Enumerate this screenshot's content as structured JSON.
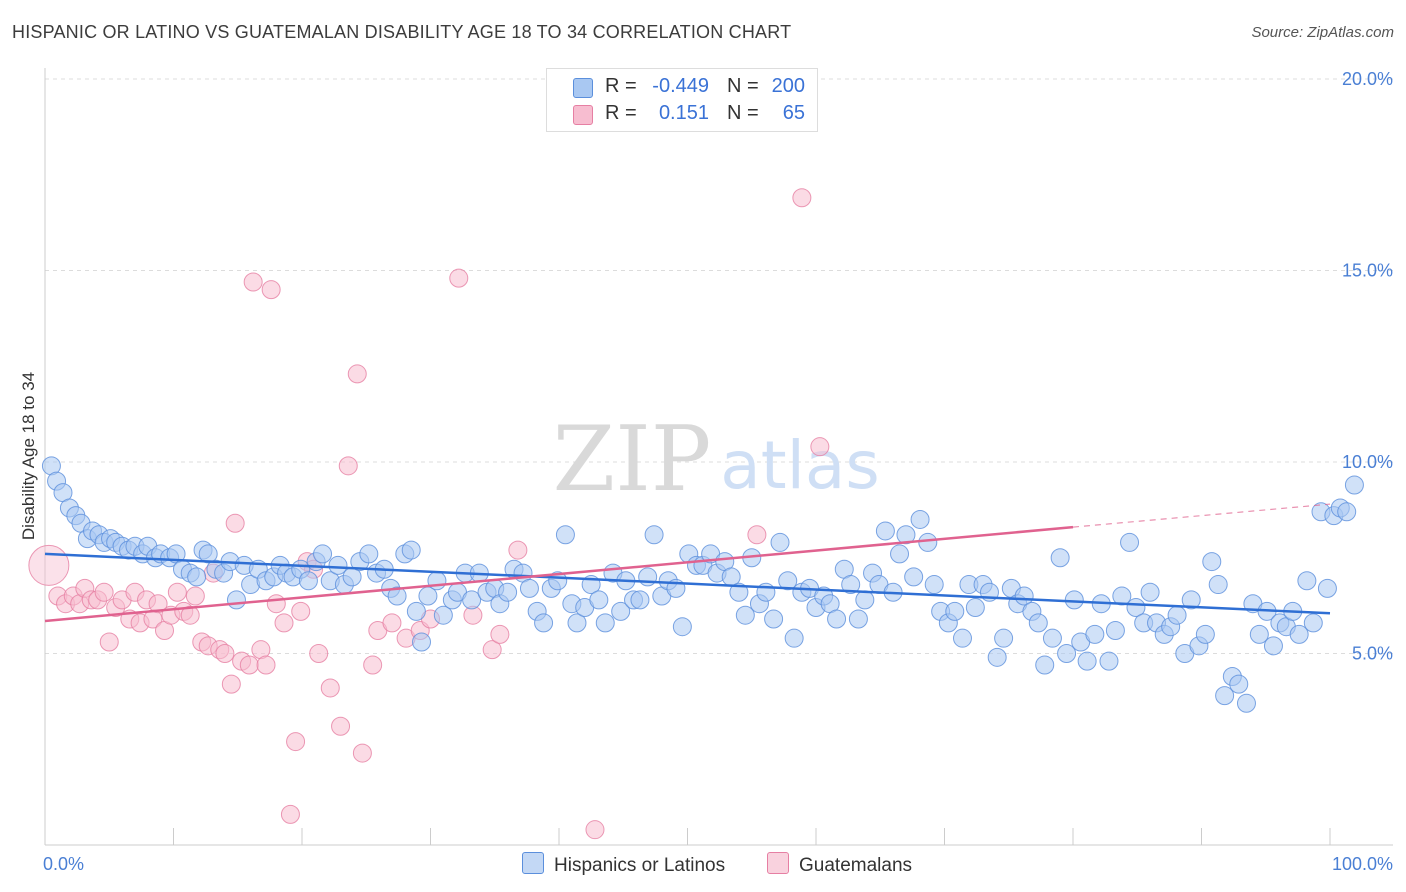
{
  "header": {
    "title": "HISPANIC OR LATINO VS GUATEMALAN DISABILITY AGE 18 TO 34 CORRELATION CHART",
    "source": "Source: ZipAtlas.com"
  },
  "watermark": {
    "zip": "ZIP",
    "atlas": "atlas"
  },
  "legend": {
    "rows": [
      {
        "r_label": "R =",
        "r_value": "-0.449",
        "n_label": "N =",
        "n_value": "200",
        "color": "#a9c8f2"
      },
      {
        "r_label": "R =",
        "r_value": "0.151",
        "n_label": "N =",
        "n_value": "65",
        "color": "#f7bdd0"
      }
    ]
  },
  "bottom_legend": {
    "items": [
      {
        "label": "Hispanics or Latinos",
        "color": "#a9c8f2"
      },
      {
        "label": "Guatemalans",
        "color": "#f7bdd0"
      }
    ]
  },
  "colors": {
    "blue_fill": "#a9c8f2",
    "blue_stroke": "#5b8fdc",
    "blue_line": "#2f6fd4",
    "pink_fill": "#f7bdd0",
    "pink_stroke": "#e67fa3",
    "pink_line": "#e0628f",
    "tick_label": "#4a7fd4",
    "grid": "#dcdcdc"
  },
  "chart_data": {
    "type": "scatter",
    "title": "HISPANIC OR LATINO VS GUATEMALAN DISABILITY AGE 18 TO 34 CORRELATION CHART",
    "xlabel": "",
    "ylabel": "Disability Age 18 to 34",
    "xlim": [
      0,
      100
    ],
    "ylim": [
      0,
      21
    ],
    "x_tick_labels": [
      "0.0%",
      "100.0%"
    ],
    "y_ticks": [
      5,
      10,
      15,
      20
    ],
    "y_tick_labels": [
      "5.0%",
      "10.0%",
      "15.0%",
      "20.0%"
    ],
    "grid": true,
    "legend_position": "top-center",
    "series": [
      {
        "name": "Hispanics or Latinos",
        "r": -0.449,
        "n": 200,
        "trend": {
          "x": [
            0,
            100
          ],
          "y": [
            7.6,
            6.05
          ]
        },
        "points": [
          [
            0.5,
            9.9
          ],
          [
            0.9,
            9.5
          ],
          [
            1.4,
            9.2
          ],
          [
            1.9,
            8.8
          ],
          [
            2.4,
            8.6
          ],
          [
            2.8,
            8.4
          ],
          [
            3.3,
            8.0
          ],
          [
            3.7,
            8.2
          ],
          [
            4.2,
            8.1
          ],
          [
            4.6,
            7.9
          ],
          [
            5.1,
            8.0
          ],
          [
            5.5,
            7.9
          ],
          [
            6.0,
            7.8
          ],
          [
            6.5,
            7.7
          ],
          [
            7.0,
            7.8
          ],
          [
            7.6,
            7.6
          ],
          [
            8.0,
            7.8
          ],
          [
            8.6,
            7.5
          ],
          [
            9.0,
            7.6
          ],
          [
            9.7,
            7.5
          ],
          [
            10.2,
            7.6
          ],
          [
            10.7,
            7.2
          ],
          [
            11.3,
            7.1
          ],
          [
            11.8,
            7.0
          ],
          [
            12.3,
            7.7
          ],
          [
            12.7,
            7.6
          ],
          [
            13.3,
            7.2
          ],
          [
            13.9,
            7.1
          ],
          [
            14.4,
            7.4
          ],
          [
            14.9,
            6.4
          ],
          [
            15.5,
            7.3
          ],
          [
            16.0,
            6.8
          ],
          [
            16.6,
            7.2
          ],
          [
            17.2,
            6.9
          ],
          [
            17.8,
            7.0
          ],
          [
            18.3,
            7.3
          ],
          [
            18.8,
            7.1
          ],
          [
            19.3,
            7.0
          ],
          [
            19.9,
            7.2
          ],
          [
            20.5,
            6.9
          ],
          [
            21.1,
            7.4
          ],
          [
            21.6,
            7.6
          ],
          [
            22.2,
            6.9
          ],
          [
            22.8,
            7.3
          ],
          [
            23.3,
            6.8
          ],
          [
            23.9,
            7.0
          ],
          [
            24.5,
            7.4
          ],
          [
            25.2,
            7.6
          ],
          [
            25.8,
            7.1
          ],
          [
            26.4,
            7.2
          ],
          [
            26.9,
            6.7
          ],
          [
            27.4,
            6.5
          ],
          [
            28.0,
            7.6
          ],
          [
            28.5,
            7.7
          ],
          [
            28.9,
            6.1
          ],
          [
            29.3,
            5.3
          ],
          [
            29.8,
            6.5
          ],
          [
            30.5,
            6.9
          ],
          [
            31.0,
            6.0
          ],
          [
            31.7,
            6.4
          ],
          [
            32.1,
            6.6
          ],
          [
            32.7,
            7.1
          ],
          [
            33.2,
            6.4
          ],
          [
            33.8,
            7.1
          ],
          [
            34.4,
            6.6
          ],
          [
            35.0,
            6.7
          ],
          [
            35.4,
            6.3
          ],
          [
            36.0,
            6.6
          ],
          [
            36.5,
            7.2
          ],
          [
            37.2,
            7.1
          ],
          [
            37.7,
            6.7
          ],
          [
            38.3,
            6.1
          ],
          [
            38.8,
            5.8
          ],
          [
            39.4,
            6.7
          ],
          [
            39.9,
            6.9
          ],
          [
            40.5,
            8.1
          ],
          [
            41.0,
            6.3
          ],
          [
            41.4,
            5.8
          ],
          [
            42.0,
            6.2
          ],
          [
            42.5,
            6.8
          ],
          [
            43.1,
            6.4
          ],
          [
            43.6,
            5.8
          ],
          [
            44.2,
            7.1
          ],
          [
            44.8,
            6.1
          ],
          [
            45.2,
            6.9
          ],
          [
            45.8,
            6.4
          ],
          [
            46.3,
            6.4
          ],
          [
            46.9,
            7.0
          ],
          [
            47.4,
            8.1
          ],
          [
            48.0,
            6.5
          ],
          [
            48.5,
            6.9
          ],
          [
            49.1,
            6.7
          ],
          [
            49.6,
            5.7
          ],
          [
            50.1,
            7.6
          ],
          [
            50.7,
            7.3
          ],
          [
            51.2,
            7.3
          ],
          [
            51.8,
            7.6
          ],
          [
            52.3,
            7.1
          ],
          [
            52.9,
            7.4
          ],
          [
            53.4,
            7.0
          ],
          [
            54.0,
            6.6
          ],
          [
            54.5,
            6.0
          ],
          [
            55.0,
            7.5
          ],
          [
            55.6,
            6.3
          ],
          [
            56.1,
            6.6
          ],
          [
            56.7,
            5.9
          ],
          [
            57.2,
            7.9
          ],
          [
            57.8,
            6.9
          ],
          [
            58.3,
            5.4
          ],
          [
            58.9,
            6.6
          ],
          [
            59.5,
            6.7
          ],
          [
            60.0,
            6.2
          ],
          [
            60.6,
            6.5
          ],
          [
            61.1,
            6.3
          ],
          [
            61.6,
            5.9
          ],
          [
            62.2,
            7.2
          ],
          [
            62.7,
            6.8
          ],
          [
            63.3,
            5.9
          ],
          [
            63.8,
            6.4
          ],
          [
            64.4,
            7.1
          ],
          [
            64.9,
            6.8
          ],
          [
            65.4,
            8.2
          ],
          [
            66.0,
            6.6
          ],
          [
            66.5,
            7.6
          ],
          [
            67.0,
            8.1
          ],
          [
            67.6,
            7.0
          ],
          [
            68.1,
            8.5
          ],
          [
            68.7,
            7.9
          ],
          [
            69.2,
            6.8
          ],
          [
            69.7,
            6.1
          ],
          [
            70.3,
            5.8
          ],
          [
            70.8,
            6.1
          ],
          [
            71.4,
            5.4
          ],
          [
            71.9,
            6.8
          ],
          [
            72.4,
            6.2
          ],
          [
            73.0,
            6.8
          ],
          [
            73.5,
            6.6
          ],
          [
            74.1,
            4.9
          ],
          [
            74.6,
            5.4
          ],
          [
            75.2,
            6.7
          ],
          [
            75.7,
            6.3
          ],
          [
            76.2,
            6.5
          ],
          [
            76.8,
            6.1
          ],
          [
            77.3,
            5.8
          ],
          [
            77.8,
            4.7
          ],
          [
            78.4,
            5.4
          ],
          [
            79.0,
            7.5
          ],
          [
            79.5,
            5.0
          ],
          [
            80.1,
            6.4
          ],
          [
            80.6,
            5.3
          ],
          [
            81.1,
            4.8
          ],
          [
            81.7,
            5.5
          ],
          [
            82.2,
            6.3
          ],
          [
            82.8,
            4.8
          ],
          [
            83.3,
            5.6
          ],
          [
            83.8,
            6.5
          ],
          [
            84.4,
            7.9
          ],
          [
            84.9,
            6.2
          ],
          [
            85.5,
            5.8
          ],
          [
            86.0,
            6.6
          ],
          [
            86.5,
            5.8
          ],
          [
            87.1,
            5.5
          ],
          [
            87.6,
            5.7
          ],
          [
            88.1,
            6.0
          ],
          [
            88.7,
            5.0
          ],
          [
            89.2,
            6.4
          ],
          [
            89.8,
            5.2
          ],
          [
            90.3,
            5.5
          ],
          [
            90.8,
            7.4
          ],
          [
            91.3,
            6.8
          ],
          [
            91.8,
            3.9
          ],
          [
            92.4,
            4.4
          ],
          [
            92.9,
            4.2
          ],
          [
            93.5,
            3.7
          ],
          [
            94.0,
            6.3
          ],
          [
            94.5,
            5.5
          ],
          [
            95.1,
            6.1
          ],
          [
            95.6,
            5.2
          ],
          [
            96.1,
            5.8
          ],
          [
            96.6,
            5.7
          ],
          [
            97.1,
            6.1
          ],
          [
            97.6,
            5.5
          ],
          [
            98.2,
            6.9
          ],
          [
            98.7,
            5.8
          ],
          [
            99.3,
            8.7
          ],
          [
            99.8,
            6.7
          ],
          [
            100.3,
            8.6
          ],
          [
            100.8,
            8.8
          ],
          [
            101.3,
            8.7
          ],
          [
            101.9,
            9.4
          ]
        ]
      },
      {
        "name": "Guatemalans",
        "r": 0.151,
        "n": 65,
        "trend": {
          "x": [
            0,
            80
          ],
          "y": [
            5.85,
            8.3
          ]
        },
        "trend_dashed": {
          "x": [
            80,
            100
          ],
          "y": [
            8.3,
            8.9
          ]
        },
        "points": [
          [
            0.3,
            7.3
          ],
          [
            1.0,
            6.5
          ],
          [
            1.6,
            6.3
          ],
          [
            2.2,
            6.5
          ],
          [
            2.7,
            6.3
          ],
          [
            3.1,
            6.7
          ],
          [
            3.6,
            6.4
          ],
          [
            4.1,
            6.4
          ],
          [
            4.6,
            6.6
          ],
          [
            5.0,
            5.3
          ],
          [
            5.5,
            6.2
          ],
          [
            6.0,
            6.4
          ],
          [
            6.6,
            5.9
          ],
          [
            7.0,
            6.6
          ],
          [
            7.4,
            5.8
          ],
          [
            7.9,
            6.4
          ],
          [
            8.4,
            5.9
          ],
          [
            8.8,
            6.3
          ],
          [
            9.3,
            5.6
          ],
          [
            9.8,
            6.0
          ],
          [
            10.3,
            6.6
          ],
          [
            10.8,
            6.1
          ],
          [
            11.3,
            6.0
          ],
          [
            11.7,
            6.5
          ],
          [
            12.2,
            5.3
          ],
          [
            12.7,
            5.2
          ],
          [
            13.1,
            7.1
          ],
          [
            13.6,
            5.1
          ],
          [
            14.0,
            5.0
          ],
          [
            14.5,
            4.2
          ],
          [
            14.8,
            8.4
          ],
          [
            15.3,
            4.8
          ],
          [
            15.9,
            4.7
          ],
          [
            16.2,
            14.7
          ],
          [
            16.8,
            5.1
          ],
          [
            17.2,
            4.7
          ],
          [
            17.6,
            14.5
          ],
          [
            18.0,
            6.3
          ],
          [
            18.6,
            5.8
          ],
          [
            19.1,
            0.8
          ],
          [
            19.5,
            2.7
          ],
          [
            19.9,
            6.1
          ],
          [
            20.4,
            7.4
          ],
          [
            20.9,
            7.2
          ],
          [
            21.3,
            5.0
          ],
          [
            22.2,
            4.1
          ],
          [
            23.0,
            3.1
          ],
          [
            23.6,
            9.9
          ],
          [
            24.3,
            12.3
          ],
          [
            24.7,
            2.4
          ],
          [
            25.5,
            4.7
          ],
          [
            25.9,
            5.6
          ],
          [
            27.0,
            5.8
          ],
          [
            28.1,
            5.4
          ],
          [
            29.2,
            5.6
          ],
          [
            30.0,
            5.9
          ],
          [
            32.2,
            14.8
          ],
          [
            33.3,
            6.0
          ],
          [
            34.8,
            5.1
          ],
          [
            35.4,
            5.5
          ],
          [
            36.8,
            7.7
          ],
          [
            42.8,
            0.4
          ],
          [
            55.4,
            8.1
          ],
          [
            58.9,
            16.9
          ],
          [
            60.3,
            10.4
          ]
        ]
      }
    ]
  }
}
